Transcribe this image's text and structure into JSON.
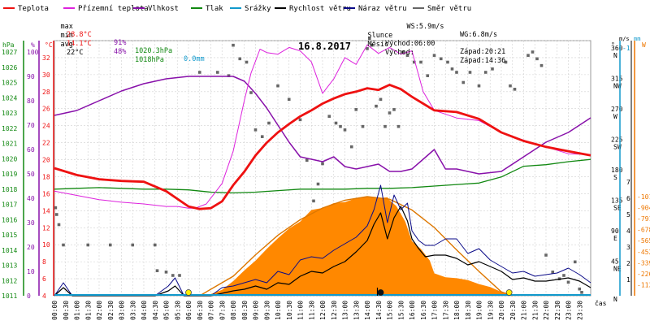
{
  "chart_data": {
    "type": "line",
    "title": "16.8.2017",
    "legend": [
      {
        "label": "Teplota",
        "color": "#ee1111"
      },
      {
        "label": "Přízemní teplota",
        "color": "#dd22dd"
      },
      {
        "label": "Vlhkost",
        "color": "#8811aa"
      },
      {
        "label": "Tlak",
        "color": "#118811"
      },
      {
        "label": "Srážky",
        "color": "#1199cc"
      },
      {
        "label": "Rychlost větru",
        "color": "#000000"
      },
      {
        "label": "Náraz větru",
        "color": "#0a0a88"
      },
      {
        "label": "Směr větru",
        "color": "#666666"
      }
    ],
    "stats": {
      "max": {
        "label": "max",
        "temp": "28.8°C",
        "hum": "91%",
        "press": "1020.3hPa",
        "rain": "0.0mm"
      },
      "min": {
        "label": "min",
        "temp": "14.1°C",
        "hum": "48%",
        "press": "1018hPa"
      },
      "avg": {
        "label": "avg",
        "temp": "22°C"
      },
      "ws": "WS:5.9m/s",
      "wg": "WG:6.8m/s",
      "sun": {
        "label": "Slunce",
        "rise": "Východ:06:00",
        "set": "Západ:20:21"
      },
      "moon": {
        "label": "Měsíc",
        "rise": "Východ:",
        "set": "Západ:14:36"
      }
    },
    "axes": {
      "hpa": {
        "unit": "hPa",
        "ticks": [
          1011,
          1012,
          1013,
          1014,
          1015,
          1016,
          1017,
          1018,
          1019,
          1020,
          1021,
          1022,
          1023,
          1024,
          1025,
          1026,
          1027
        ],
        "color": "#118811"
      },
      "pct": {
        "unit": "%",
        "ticks": [
          0,
          10,
          20,
          30,
          40,
          50,
          60,
          70,
          80,
          90,
          100
        ],
        "color": "#8811aa"
      },
      "temp": {
        "unit": "°C",
        "ticks": [
          4,
          6,
          8,
          10,
          12,
          14,
          16,
          18,
          20,
          22,
          24,
          26,
          28,
          30,
          32,
          34
        ],
        "color": "#ee1111"
      },
      "dir": {
        "unit": "°",
        "ticks": [
          {
            "v": 0,
            "deg": "",
            "lbl": "N"
          },
          {
            "v": 45,
            "deg": "45",
            "lbl": "NE"
          },
          {
            "v": 90,
            "deg": "90",
            "lbl": "E"
          },
          {
            "v": 135,
            "deg": "135",
            "lbl": "SE"
          },
          {
            "v": 180,
            "deg": "180",
            "lbl": "S"
          },
          {
            "v": 225,
            "deg": "225",
            "lbl": "SW"
          },
          {
            "v": 270,
            "deg": "270",
            "lbl": "W"
          },
          {
            "v": 315,
            "deg": "315",
            "lbl": "NW"
          },
          {
            "v": 360,
            "deg": "360",
            "lbl": "N"
          }
        ]
      },
      "ms": {
        "unit": "m/s",
        "ticks": [
          0,
          1,
          2,
          3,
          4,
          5,
          6,
          7
        ]
      },
      "mm": {
        "unit": "mm",
        "ticks": [
          0,
          1
        ],
        "color": "#1199cc"
      },
      "wm2": {
        "unit": "W",
        "ticks": [
          0,
          113,
          226,
          339,
          452,
          565,
          678,
          791,
          904,
          1017
        ],
        "color": "#ee7700"
      },
      "time": {
        "label": "čas",
        "ticks": [
          "00:00",
          "00:30",
          "01:00",
          "01:30",
          "02:00",
          "02:30",
          "03:00",
          "03:30",
          "04:00",
          "04:30",
          "05:00",
          "05:30",
          "06:00",
          "06:30",
          "07:00",
          "07:30",
          "08:00",
          "08:30",
          "09:00",
          "09:30",
          "10:00",
          "10:30",
          "11:00",
          "11:30",
          "12:00",
          "12:30",
          "13:00",
          "13:30",
          "14:00",
          "14:30",
          "15:00",
          "15:30",
          "16:00",
          "16:30",
          "17:00",
          "17:30",
          "18:00",
          "18:30",
          "19:00",
          "19:30",
          "20:00",
          "20:30",
          "21:00",
          "21:30",
          "22:00",
          "22:30",
          "23:00",
          "23:30"
        ]
      }
    },
    "series": {
      "temperature": {
        "name": "Teplota",
        "x": [
          0,
          1,
          2,
          3,
          4,
          5,
          6,
          6.5,
          7,
          7.5,
          8,
          8.5,
          9,
          9.5,
          10,
          10.5,
          11,
          11.5,
          12,
          12.5,
          13,
          13.5,
          14,
          14.5,
          15,
          15.5,
          16,
          16.5,
          17,
          18,
          19,
          20,
          21,
          22,
          23,
          24
        ],
        "y": [
          19,
          18.2,
          17.7,
          17.5,
          17.4,
          16.3,
          14.5,
          14.2,
          14.3,
          15.1,
          17,
          18.6,
          20.5,
          22,
          23.2,
          24.2,
          25.1,
          25.8,
          26.6,
          27.2,
          27.7,
          28,
          28.4,
          28.2,
          28.8,
          28.3,
          27.4,
          26.6,
          25.8,
          25.6,
          24.8,
          23.2,
          22.2,
          21.5,
          21,
          20.5
        ]
      },
      "ground_temperature": {
        "name": "Přízemní teplota",
        "x": [
          0,
          1,
          2,
          3,
          4,
          5,
          5.5,
          6,
          6.3,
          6.8,
          7.5,
          8,
          8.5,
          8.8,
          9.2,
          9.5,
          10,
          10.5,
          11,
          11.5,
          12,
          12.5,
          13,
          13.5,
          14,
          14.5,
          15,
          15.5,
          16,
          16.5,
          17,
          18,
          19,
          20,
          21,
          22,
          23,
          24
        ],
        "y": [
          16.3,
          15.8,
          15.3,
          15,
          14.8,
          14.5,
          14.5,
          14.3,
          14.3,
          14.8,
          17.2,
          21,
          27,
          30.2,
          33,
          32.6,
          32.4,
          33.2,
          32.8,
          31.5,
          27.8,
          29.5,
          32,
          31.2,
          33.5,
          32.5,
          33.2,
          32.4,
          32.8,
          28,
          25.8,
          24.9,
          24.6,
          23.2,
          22.3,
          21.5,
          20.7,
          20.6
        ]
      },
      "humidity": {
        "name": "Vlhkost",
        "x": [
          0,
          1,
          2,
          3,
          4,
          5,
          6,
          7,
          8,
          8.5,
          9,
          9.5,
          10,
          10.5,
          11,
          11.5,
          12,
          12.5,
          13,
          13.5,
          14,
          14.5,
          15,
          15.5,
          16,
          16.5,
          17,
          17.5,
          18,
          19,
          20,
          21,
          22,
          23,
          24
        ],
        "y": [
          74,
          76,
          80,
          84,
          87,
          89,
          90,
          90,
          90,
          88,
          83,
          77,
          70,
          63,
          57,
          56,
          55,
          57,
          53,
          52,
          53,
          54,
          51,
          51,
          52,
          56,
          60,
          52,
          52,
          50,
          51,
          57,
          63,
          67,
          73
        ]
      },
      "pressure": {
        "name": "Tlak",
        "x": [
          0,
          1,
          2,
          3,
          4,
          5,
          6,
          7,
          8,
          9,
          10,
          11,
          12,
          13,
          14,
          15,
          16,
          17,
          18,
          19,
          20,
          21,
          22,
          23,
          24
        ],
        "y": [
          1018,
          1018.05,
          1018.1,
          1018.05,
          1018,
          1018,
          1017.95,
          1017.8,
          1017.75,
          1017.8,
          1017.9,
          1018,
          1018,
          1018,
          1018.05,
          1018.05,
          1018.1,
          1018.2,
          1018.3,
          1018.4,
          1018.8,
          1019.5,
          1019.6,
          1019.8,
          1019.95
        ]
      },
      "rain": {
        "name": "Srážky",
        "x": [
          0,
          24
        ],
        "y": [
          0,
          0
        ]
      },
      "wind_speed": {
        "name": "Rychlost větru",
        "x": [
          0,
          0.4,
          0.8,
          1,
          4.5,
          5.1,
          5.4,
          5.8,
          7,
          8,
          8.5,
          9,
          9.5,
          10,
          10.5,
          11,
          11.5,
          12,
          12.5,
          13,
          13.5,
          14,
          14.3,
          14.6,
          14.9,
          15.2,
          15.5,
          15.8,
          16,
          16.3,
          16.6,
          17,
          17.5,
          18,
          18.5,
          19,
          19.5,
          20,
          20.5,
          21,
          21.5,
          22,
          22.5,
          23,
          23.5,
          24
        ],
        "y": [
          0,
          0.5,
          0,
          0,
          0,
          0.3,
          0.6,
          0,
          0,
          0.3,
          0.4,
          0.6,
          0.4,
          0.8,
          0.7,
          1.2,
          1.5,
          1.4,
          1.8,
          2.1,
          2.7,
          3.4,
          4.4,
          5.1,
          3.5,
          4.8,
          5.5,
          4.6,
          3.5,
          2.9,
          2.4,
          2.5,
          2.5,
          2.3,
          1.9,
          2.1,
          1.8,
          1.5,
          1.0,
          1.1,
          0.9,
          0.9,
          1.0,
          1.1,
          0.9,
          0.5
        ]
      },
      "wind_gust": {
        "name": "Náraz větru",
        "x": [
          0,
          0.4,
          0.8,
          1,
          4.5,
          5.1,
          5.4,
          5.8,
          7,
          7.5,
          8,
          8.5,
          9,
          9.5,
          10,
          10.5,
          11,
          11.5,
          12,
          12.5,
          13,
          13.5,
          14,
          14.3,
          14.6,
          14.9,
          15.2,
          15.5,
          15.8,
          16,
          16.3,
          16.6,
          17,
          17.5,
          18,
          18.5,
          19,
          19.5,
          20,
          20.5,
          21,
          21.5,
          22,
          22.5,
          23,
          23.5,
          24
        ],
        "y": [
          0,
          0.8,
          0,
          0,
          0,
          0.6,
          1.1,
          0,
          0,
          0.5,
          0.6,
          0.8,
          1.0,
          0.8,
          1.5,
          1.3,
          2.2,
          2.4,
          2.3,
          2.8,
          3.2,
          3.6,
          4.3,
          5.3,
          6.8,
          4.5,
          6.2,
          5.3,
          5.7,
          4.0,
          3.4,
          3.1,
          3.1,
          3.5,
          3.5,
          2.6,
          2.9,
          2.2,
          1.8,
          1.4,
          1.5,
          1.2,
          1.3,
          1.4,
          1.7,
          1.3,
          0.8
        ]
      },
      "solar": {
        "name": "Solar",
        "x": [
          6.8,
          7.5,
          8,
          8.5,
          9,
          9.5,
          10,
          10.5,
          11,
          11.5,
          12,
          12.5,
          13,
          13.5,
          14,
          14.5,
          14.9,
          15,
          15.3,
          15.7,
          16,
          16.4,
          16.8,
          17,
          17.5,
          18,
          18.5,
          19,
          19.5,
          20,
          20.4
        ],
        "y": [
          0,
          60,
          150,
          260,
          360,
          480,
          590,
          690,
          760,
          880,
          900,
          950,
          960,
          1000,
          1017,
          1000,
          1010,
          980,
          920,
          760,
          560,
          480,
          360,
          230,
          190,
          180,
          160,
          120,
          90,
          40,
          0
        ]
      },
      "solar_clear": {
        "name": "Solar max",
        "x": [
          6.5,
          8,
          9,
          10,
          11,
          12,
          13,
          14,
          15,
          16,
          17,
          18,
          19,
          20,
          20.5
        ],
        "y": [
          0,
          200,
          420,
          620,
          780,
          900,
          980,
          1017,
          990,
          880,
          700,
          470,
          250,
          40,
          0
        ]
      },
      "wind_direction": {
        "name": "Směr větru",
        "points": [
          [
            0.05,
            130
          ],
          [
            0.1,
            120
          ],
          [
            0.2,
            105
          ],
          [
            0.4,
            75
          ],
          [
            1.5,
            75
          ],
          [
            2.5,
            75
          ],
          [
            3.5,
            75
          ],
          [
            4.5,
            75
          ],
          [
            4.6,
            37
          ],
          [
            5,
            35
          ],
          [
            5.3,
            30
          ],
          [
            5.6,
            30
          ],
          [
            6.5,
            330
          ],
          [
            7.3,
            330
          ],
          [
            7.8,
            325
          ],
          [
            8,
            370
          ],
          [
            8.3,
            350
          ],
          [
            8.6,
            345
          ],
          [
            8.8,
            300
          ],
          [
            9,
            245
          ],
          [
            9.3,
            235
          ],
          [
            9.6,
            255
          ],
          [
            10,
            310
          ],
          [
            10.5,
            290
          ],
          [
            11,
            260
          ],
          [
            11.3,
            200
          ],
          [
            11.6,
            140
          ],
          [
            11.8,
            165
          ],
          [
            12,
            195
          ],
          [
            12.3,
            265
          ],
          [
            12.6,
            255
          ],
          [
            12.8,
            250
          ],
          [
            13,
            245
          ],
          [
            13.3,
            220
          ],
          [
            13.5,
            275
          ],
          [
            13.8,
            250
          ],
          [
            14,
            365
          ],
          [
            14.1,
            380
          ],
          [
            14.2,
            370
          ],
          [
            14.4,
            280
          ],
          [
            14.6,
            290
          ],
          [
            14.8,
            250
          ],
          [
            15,
            270
          ],
          [
            15.2,
            275
          ],
          [
            15.4,
            250
          ],
          [
            15.6,
            360
          ],
          [
            15.8,
            355
          ],
          [
            16.1,
            345
          ],
          [
            16.4,
            345
          ],
          [
            16.7,
            325
          ],
          [
            17,
            355
          ],
          [
            17.3,
            350
          ],
          [
            17.6,
            345
          ],
          [
            17.8,
            335
          ],
          [
            18,
            330
          ],
          [
            18.3,
            315
          ],
          [
            18.6,
            330
          ],
          [
            19,
            310
          ],
          [
            19.3,
            330
          ],
          [
            19.6,
            335
          ],
          [
            20.2,
            345
          ],
          [
            20.4,
            310
          ],
          [
            20.6,
            305
          ],
          [
            21.2,
            355
          ],
          [
            21.4,
            360
          ],
          [
            21.6,
            350
          ],
          [
            21.8,
            340
          ],
          [
            22,
            60
          ],
          [
            22.3,
            35
          ],
          [
            22.6,
            25
          ],
          [
            22.8,
            30
          ],
          [
            23,
            20
          ],
          [
            23.3,
            50
          ],
          [
            23.5,
            10
          ],
          [
            23.6,
            5
          ]
        ]
      }
    },
    "sunrise_hour": 6.0,
    "sunset_hour": 20.35,
    "moon_hour": 14.6
  }
}
